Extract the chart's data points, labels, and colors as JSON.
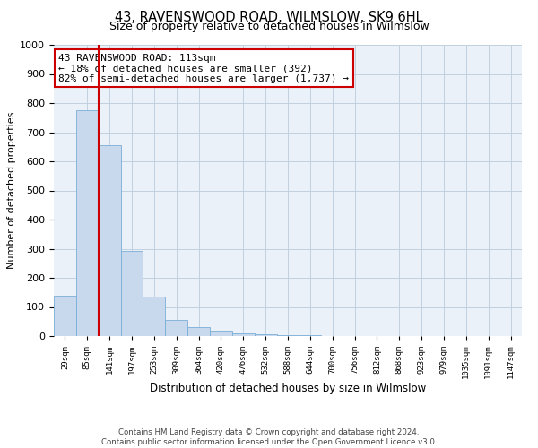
{
  "title": "43, RAVENSWOOD ROAD, WILMSLOW, SK9 6HL",
  "subtitle": "Size of property relative to detached houses in Wilmslow",
  "xlabel": "Distribution of detached houses by size in Wilmslow",
  "ylabel": "Number of detached properties",
  "bar_labels": [
    "29sqm",
    "85sqm",
    "141sqm",
    "197sqm",
    "253sqm",
    "309sqm",
    "364sqm",
    "420sqm",
    "476sqm",
    "532sqm",
    "588sqm",
    "644sqm",
    "700sqm",
    "756sqm",
    "812sqm",
    "868sqm",
    "923sqm",
    "979sqm",
    "1035sqm",
    "1091sqm",
    "1147sqm"
  ],
  "bar_values": [
    140,
    775,
    655,
    293,
    135,
    55,
    30,
    18,
    10,
    5,
    2,
    2,
    1,
    0,
    0,
    1,
    0,
    0,
    0,
    0,
    1
  ],
  "bar_color": "#c8d9ed",
  "bar_edge_color": "#7aaed6",
  "vline_color": "#cc0000",
  "ylim": [
    0,
    1000
  ],
  "yticks": [
    0,
    100,
    200,
    300,
    400,
    500,
    600,
    700,
    800,
    900,
    1000
  ],
  "annotation_text": "43 RAVENSWOOD ROAD: 113sqm\n← 18% of detached houses are smaller (392)\n82% of semi-detached houses are larger (1,737) →",
  "annotation_box_color": "#ffffff",
  "annotation_box_edge": "#cc0000",
  "footer_line1": "Contains HM Land Registry data © Crown copyright and database right 2024.",
  "footer_line2": "Contains public sector information licensed under the Open Government Licence v3.0.",
  "background_color": "#ffffff",
  "plot_bg_color": "#eaf1f8",
  "grid_color": "#c0d0e0"
}
